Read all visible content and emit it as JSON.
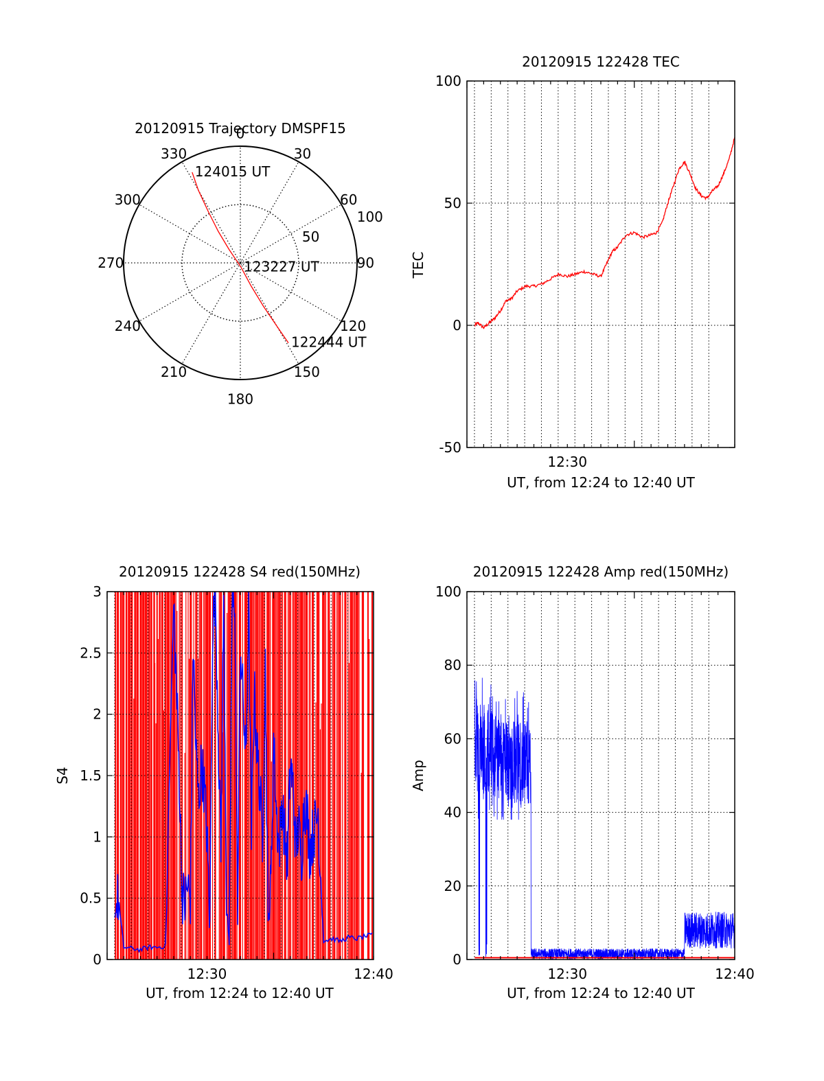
{
  "colors": {
    "red": "#ff0000",
    "blue": "#0000ff",
    "axis": "#000000",
    "grid": "#000000",
    "background": "#ffffff"
  },
  "chart_data": [
    {
      "type": "polar",
      "title": "20120915 Trajectory DMSPF15",
      "angle_labels": [
        "0",
        "30",
        "60",
        "90",
        "120",
        "150",
        "180",
        "210",
        "240",
        "270",
        "300",
        "330"
      ],
      "angle_label_values": [
        0,
        30,
        60,
        90,
        120,
        150,
        180,
        210,
        240,
        270,
        300,
        330
      ],
      "radius_labels": [
        {
          "value": 50,
          "text": "50"
        },
        {
          "value": 100,
          "text": "100"
        }
      ],
      "rlim": [
        0,
        100
      ],
      "grid": true,
      "trajectory": {
        "color": "red",
        "points": [
          {
            "az": 332,
            "r": 88
          },
          {
            "az": 330,
            "r": 72
          },
          {
            "az": 328,
            "r": 52
          },
          {
            "az": 325,
            "r": 33
          },
          {
            "az": 320,
            "r": 15
          },
          {
            "az": 170,
            "r": 4
          },
          {
            "az": 155,
            "r": 22
          },
          {
            "az": 152,
            "r": 42
          },
          {
            "az": 150,
            "r": 63
          },
          {
            "az": 149,
            "r": 80
          }
        ]
      },
      "annotations": [
        {
          "text": "124015 UT",
          "az": 332,
          "r": 88
        },
        {
          "text": "123227 UT",
          "az": 170,
          "r": 4
        },
        {
          "text": "122444 UT",
          "az": 149,
          "r": 80
        }
      ]
    },
    {
      "type": "line",
      "title": "20120915 122428 TEC",
      "xlabel": "UT, from 12:24 to 12:40 UT",
      "ylabel": "TEC",
      "xlim": [
        "12:24",
        "12:40"
      ],
      "ylim": [
        -50,
        100
      ],
      "yticks": [
        -50,
        0,
        50,
        100
      ],
      "xtick_labels": [
        "12:30"
      ],
      "grid": "dotted vertical lines every 1 minute",
      "series": [
        {
          "color": "red",
          "x": [
            "12:24:28",
            "12:24:40",
            "12:25:00",
            "12:25:20",
            "12:25:40",
            "12:26:00",
            "12:26:20",
            "12:26:40",
            "12:27:00",
            "12:27:30",
            "12:28:00",
            "12:28:30",
            "12:29:00",
            "12:29:30",
            "12:30:00",
            "12:30:30",
            "12:31:00",
            "12:31:30",
            "12:32:00",
            "12:32:20",
            "12:32:40",
            "12:33:00",
            "12:33:30",
            "12:34:00",
            "12:34:30",
            "12:35:00",
            "12:35:20",
            "12:35:40",
            "12:36:00",
            "12:36:20",
            "12:36:40",
            "12:37:00",
            "12:37:20",
            "12:37:40",
            "12:38:00",
            "12:38:20",
            "12:38:40",
            "12:39:00",
            "12:39:20",
            "12:39:40",
            "12:40:00"
          ],
          "y": [
            0,
            1,
            -1,
            1,
            3,
            6,
            10,
            11,
            14,
            16,
            16,
            17,
            19,
            21,
            20,
            21,
            22,
            21,
            20,
            25,
            30,
            32,
            37,
            38,
            36,
            37,
            38,
            42,
            50,
            57,
            64,
            67,
            62,
            56,
            53,
            52,
            55,
            57,
            62,
            68,
            77
          ]
        }
      ]
    },
    {
      "type": "line",
      "title": "20120915 122428 S4 red(150MHz)",
      "xlabel": "UT, from 12:24 to 12:40 UT",
      "ylabel": "S4",
      "xlim": [
        "12:24",
        "12:40"
      ],
      "ylim": [
        0,
        3
      ],
      "yticks": [
        "0",
        "0.5",
        "1",
        "1.5",
        "2",
        "2.5",
        "3"
      ],
      "xtick_labels": [
        "12:30",
        "12:40"
      ],
      "grid": "dotted vertical lines every 1 minute",
      "series": [
        {
          "color": "red",
          "description_values": "dense spikes 0–3 between 12:24:28 and 12:40",
          "spike_times": [
            "12:24:30",
            "12:24:40",
            "12:24:50",
            "12:25:00",
            "12:25:10",
            "12:25:20",
            "12:25:30",
            "12:25:40",
            "12:25:50",
            "12:26:00",
            "12:26:10",
            "12:26:20",
            "12:26:30",
            "12:26:40",
            "12:26:50",
            "12:27:00",
            "12:27:10",
            "12:27:20",
            "12:27:30",
            "12:27:40",
            "12:27:50",
            "12:28:00",
            "12:28:30",
            "12:29:00",
            "12:29:20",
            "12:29:40",
            "12:30:00",
            "12:30:10",
            "12:30:30",
            "12:30:50",
            "12:31:00",
            "12:31:20",
            "12:31:40",
            "12:32:00",
            "12:32:20",
            "12:32:40",
            "12:33:00",
            "12:33:20",
            "12:33:40",
            "12:34:00",
            "12:34:20",
            "12:34:40",
            "12:35:00",
            "12:35:20",
            "12:35:40",
            "12:36:00",
            "12:36:20",
            "12:36:40",
            "12:37:00",
            "12:37:20",
            "12:37:40",
            "12:38:00",
            "12:38:20",
            "12:38:40",
            "12:39:00",
            "12:39:20",
            "12:39:40",
            "12:39:55"
          ]
        },
        {
          "color": "blue",
          "x": [
            "12:24:28",
            "12:24:40",
            "12:25:00",
            "12:25:30",
            "12:26:00",
            "12:26:30",
            "12:27:00",
            "12:27:30",
            "12:28:00",
            "12:28:10",
            "12:28:20",
            "12:28:30",
            "12:28:40",
            "12:28:50",
            "12:29:00",
            "12:29:10",
            "12:29:20",
            "12:29:30",
            "12:29:40",
            "12:29:50",
            "12:30:00",
            "12:30:10",
            "12:30:20",
            "12:30:30",
            "12:30:40",
            "12:30:50",
            "12:31:00",
            "12:31:10",
            "12:31:20",
            "12:31:30",
            "12:31:40",
            "12:31:50",
            "12:32:00",
            "12:32:10",
            "12:32:20",
            "12:32:30",
            "12:32:40",
            "12:32:50",
            "12:33:00",
            "12:33:10",
            "12:33:20",
            "12:33:30",
            "12:33:40",
            "12:33:50",
            "12:34:00",
            "12:34:10",
            "12:34:20",
            "12:34:30",
            "12:34:40",
            "12:34:50",
            "12:35:00",
            "12:35:10",
            "12:35:20",
            "12:35:30",
            "12:35:40",
            "12:35:50",
            "12:36:00",
            "12:36:10",
            "12:36:20",
            "12:36:30",
            "12:36:40",
            "12:37:00",
            "12:37:30",
            "12:38:00",
            "12:38:30",
            "12:39:00",
            "12:39:30",
            "12:40:00"
          ],
          "y": [
            0.35,
            0.5,
            0.1,
            0.09,
            0.08,
            0.1,
            0.1,
            0.11,
            2.9,
            2.2,
            1.5,
            0.55,
            0.45,
            0.6,
            0.5,
            2.6,
            1.7,
            1.3,
            1.6,
            1.4,
            1.0,
            0.3,
            2.7,
            3.0,
            1.9,
            0.9,
            3.0,
            0.5,
            0.1,
            2.8,
            3.0,
            0.3,
            2.6,
            2.1,
            1.6,
            2.9,
            1.0,
            2.2,
            1.7,
            1.4,
            1.0,
            2.4,
            0.3,
            0.6,
            1.8,
            1.2,
            0.9,
            1.3,
            1.0,
            0.8,
            1.6,
            1.4,
            0.9,
            1.1,
            0.8,
            1.3,
            1.2,
            0.9,
            1.0,
            1.1,
            1.2,
            0.15,
            0.17,
            0.15,
            0.18,
            0.17,
            0.19,
            0.2
          ]
        }
      ]
    },
    {
      "type": "line",
      "title": "20120915 122428 Amp red(150MHz)",
      "xlabel": "UT, from 12:24 to 12:40 UT",
      "ylabel": "Amp",
      "xlim": [
        "12:24",
        "12:40"
      ],
      "ylim": [
        0,
        100
      ],
      "yticks": [
        0,
        20,
        40,
        60,
        80,
        100
      ],
      "xtick_labels": [
        "12:30",
        "12:40"
      ],
      "grid": "dotted vertical lines every 1 minute; dotted horizontal lines every 20",
      "series": [
        {
          "color": "blue",
          "segments": [
            {
              "from": "12:24:28",
              "to": "12:27:50",
              "min": 38,
              "max": 79,
              "note_dropouts_to_zero": [
                "12:24:45",
                "12:25:10"
              ]
            },
            {
              "from": "12:27:50",
              "to": "12:37:00",
              "min": 0,
              "max": 3
            },
            {
              "from": "12:37:00",
              "to": "12:40:00",
              "min": 3,
              "max": 13
            }
          ]
        },
        {
          "color": "red",
          "x": [
            "12:24:28",
            "12:40:00"
          ],
          "y": [
            0.5,
            0.5
          ]
        }
      ]
    }
  ]
}
